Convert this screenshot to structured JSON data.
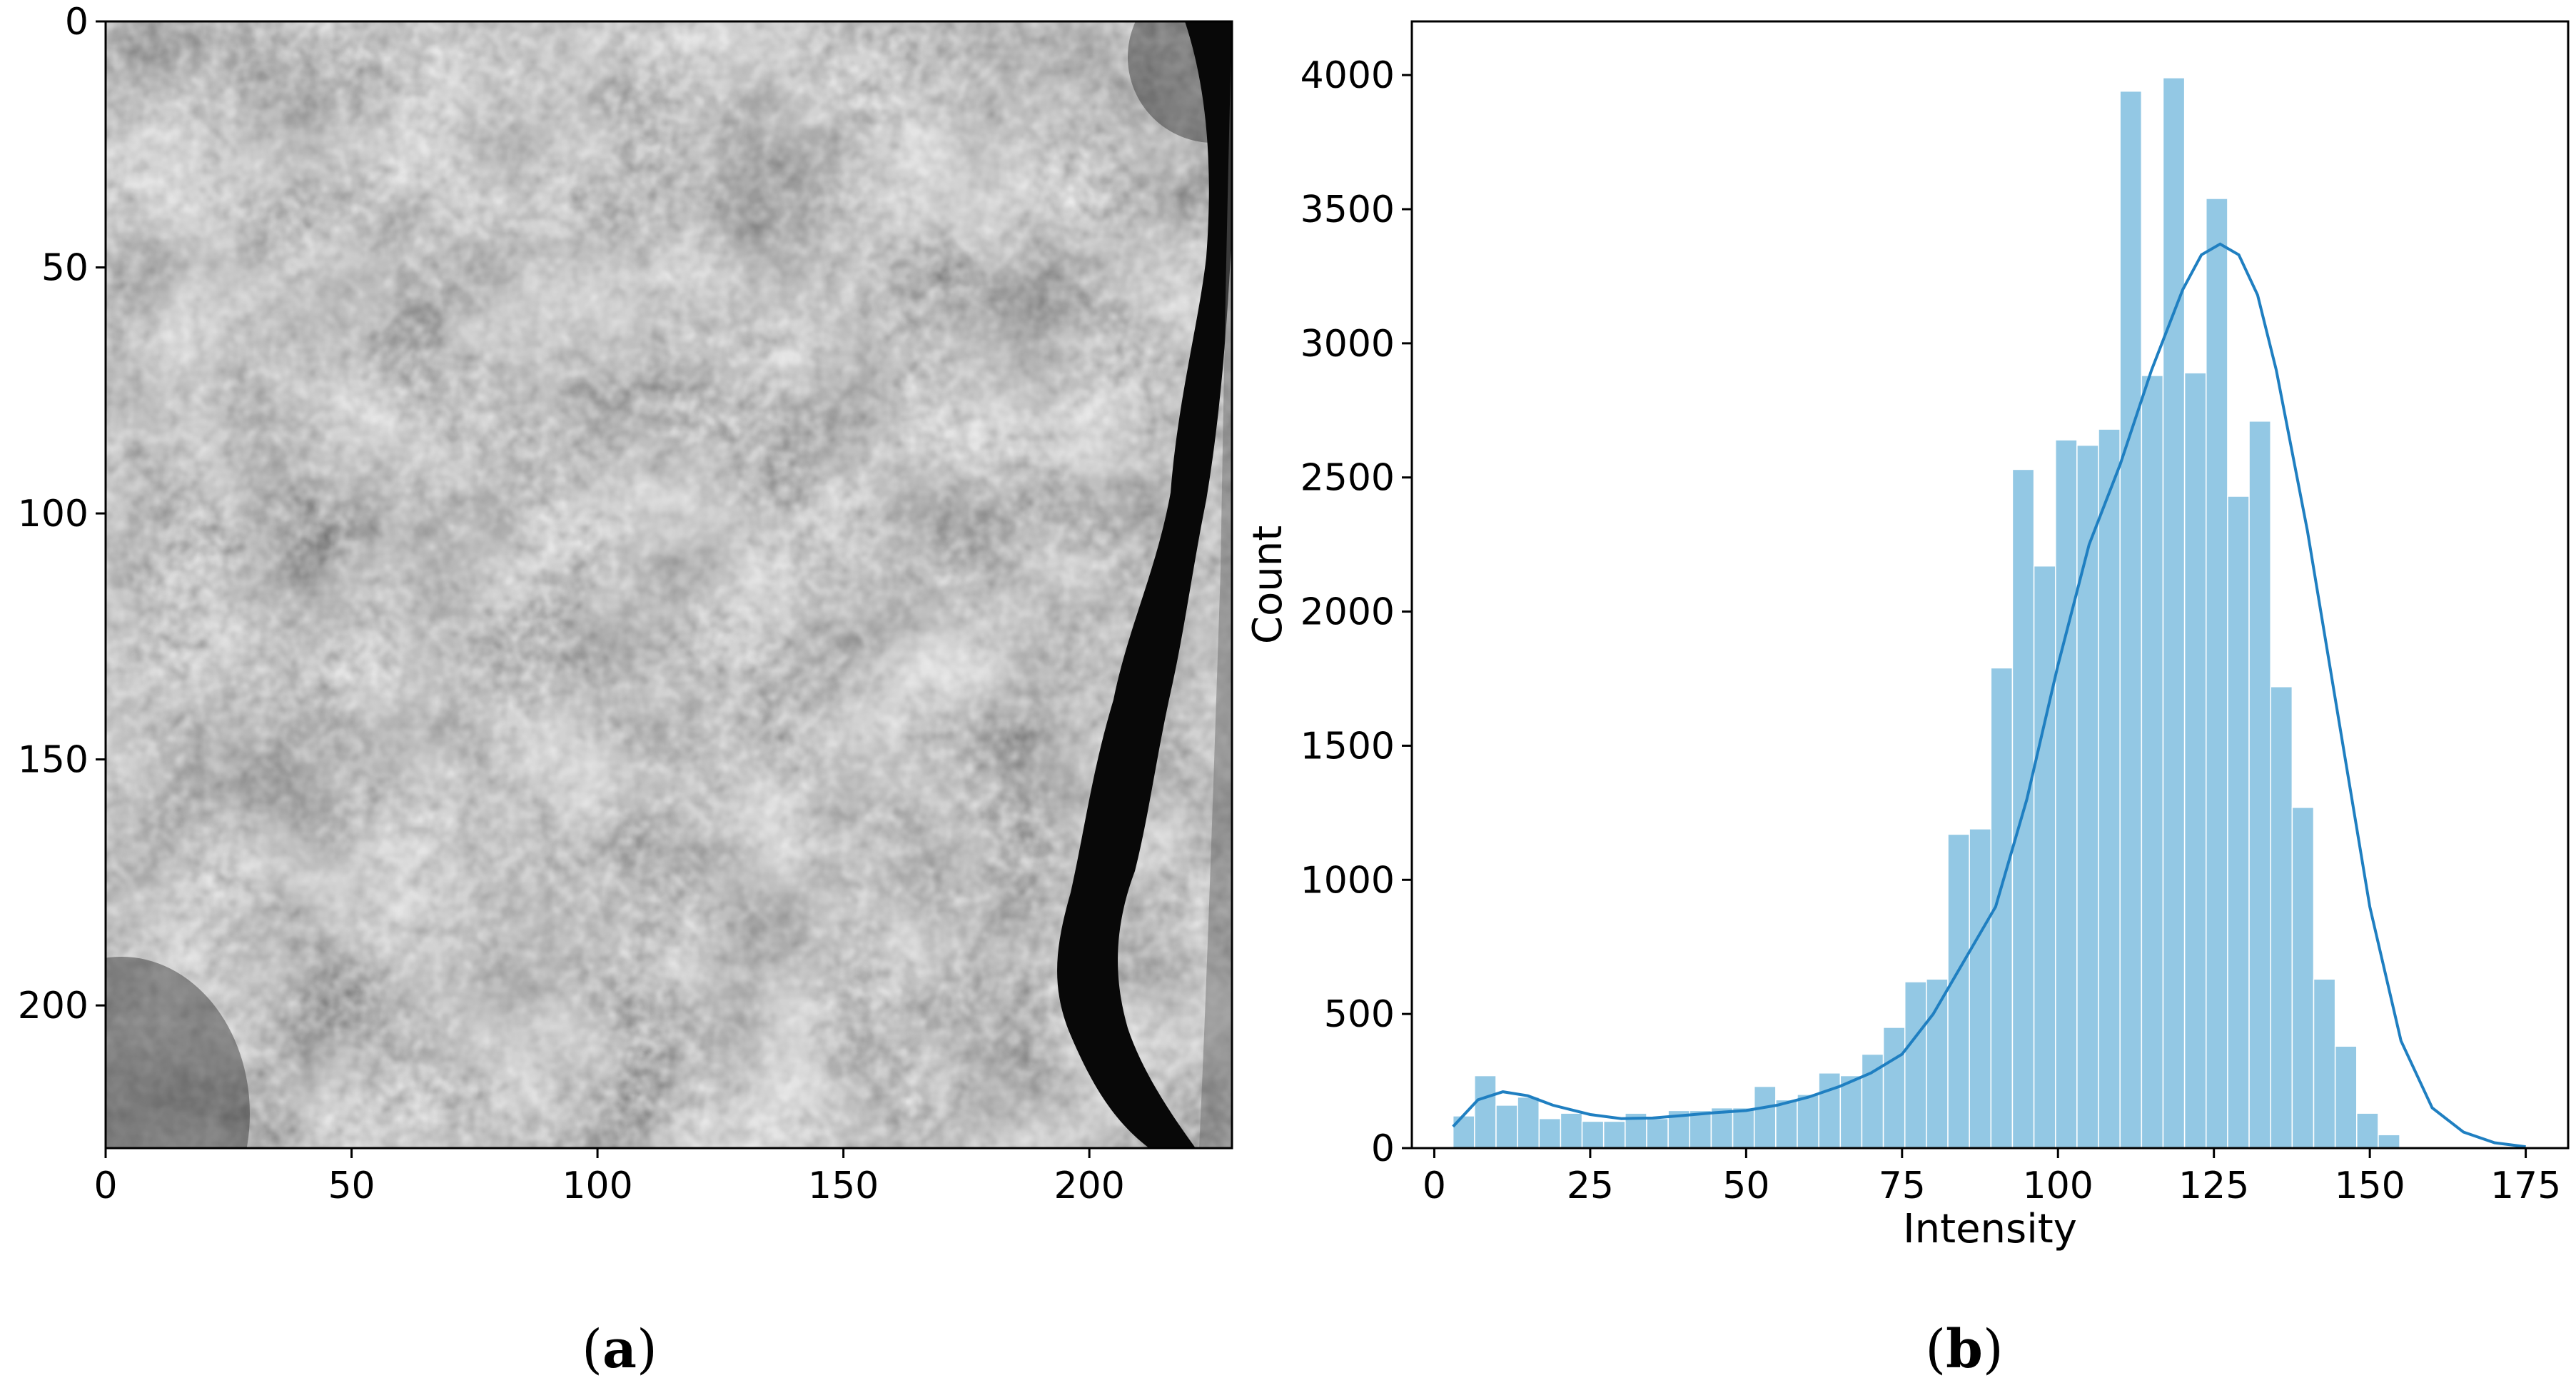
{
  "panels": {
    "a": {
      "label_open": "(",
      "label_letter": "a",
      "label_close": ")"
    },
    "b": {
      "label_open": "(",
      "label_letter": "b",
      "label_close": ")"
    }
  },
  "chart_data": [
    {
      "type": "heatmap",
      "description": "grayscale image",
      "colormap": "gray",
      "xlim": [
        0,
        229
      ],
      "ylim": [
        229,
        0
      ],
      "xticks": [
        "0",
        "50",
        "100",
        "150",
        "200"
      ],
      "yticks": [
        "0",
        "50",
        "100",
        "150",
        "200"
      ]
    },
    {
      "type": "bar",
      "xlabel": "Intensity",
      "ylabel": "Count",
      "xlim": [
        -3.6,
        181.8
      ],
      "ylim": [
        0,
        4200
      ],
      "xticks": [
        "0",
        "25",
        "50",
        "75",
        "100",
        "125",
        "150",
        "175"
      ],
      "yticks": [
        "0",
        "500",
        "1000",
        "1500",
        "2000",
        "2500",
        "3000",
        "3500",
        "4000"
      ],
      "bar_color": "#8ec6e3",
      "kde_color": "#1f7fc1",
      "bin_start": 3,
      "bin_width": 3.45,
      "values": [
        120,
        270,
        160,
        190,
        110,
        130,
        100,
        100,
        130,
        110,
        140,
        140,
        150,
        150,
        230,
        180,
        200,
        280,
        270,
        350,
        450,
        620,
        630,
        1170,
        1190,
        1790,
        2530,
        2170,
        2640,
        2620,
        2680,
        3940,
        2880,
        3990,
        2890,
        3540,
        2430,
        2710,
        1720,
        1270,
        630,
        380,
        130,
        50
      ],
      "kde": {
        "x": [
          3,
          7,
          11,
          15,
          19,
          25,
          30,
          35,
          40,
          45,
          50,
          55,
          60,
          65,
          70,
          75,
          80,
          85,
          90,
          95,
          100,
          105,
          110,
          115,
          120,
          123,
          126,
          129,
          132,
          135,
          140,
          145,
          150,
          155,
          160,
          165,
          170,
          175
        ],
        "y": [
          80,
          180,
          210,
          195,
          160,
          125,
          110,
          112,
          122,
          132,
          140,
          160,
          190,
          230,
          280,
          350,
          500,
          700,
          900,
          1300,
          1800,
          2250,
          2550,
          2900,
          3200,
          3330,
          3370,
          3330,
          3180,
          2900,
          2300,
          1600,
          900,
          400,
          150,
          60,
          20,
          5
        ]
      }
    }
  ]
}
